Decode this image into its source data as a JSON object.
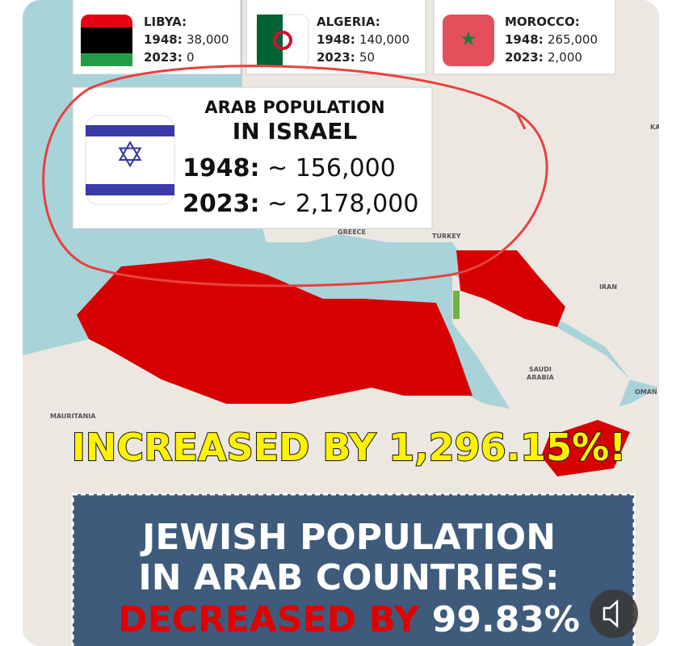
{
  "cards": [
    {
      "country": "LIBYA:",
      "lines": [
        {
          "year": "1948:",
          "value": "38,000"
        },
        {
          "year": "2023:",
          "value": "0"
        }
      ]
    },
    {
      "country": "ALGERIA:",
      "lines": [
        {
          "year": "1948:",
          "value": "140,000"
        },
        {
          "year": "2023:",
          "value": "50"
        }
      ]
    },
    {
      "country": "MOROCCO:",
      "lines": [
        {
          "year": "1948:",
          "value": "265,000"
        },
        {
          "year": "2023:",
          "value": "2,000"
        }
      ]
    }
  ],
  "israel": {
    "title": [
      "ARAB POPULATION",
      "IN ISRAEL"
    ],
    "lines": [
      {
        "year": "1948:",
        "value": "~ 156,000"
      },
      {
        "year": "2023:",
        "value": "~ 2,178,000"
      }
    ]
  },
  "map_labels": [
    "GREECE",
    "TURKEY",
    "IRAN",
    "SAUDI",
    "ARABIA",
    "OMAN",
    "MAURITANIA",
    "KA"
  ],
  "banner": "INCREASED BY 1,296.15%!",
  "bottom": {
    "lines": [
      "JEWISH POPULATION",
      "IN ARAB COUNTRIES:"
    ],
    "decreased": "DECREASED BY",
    "percent": "99.83%"
  }
}
